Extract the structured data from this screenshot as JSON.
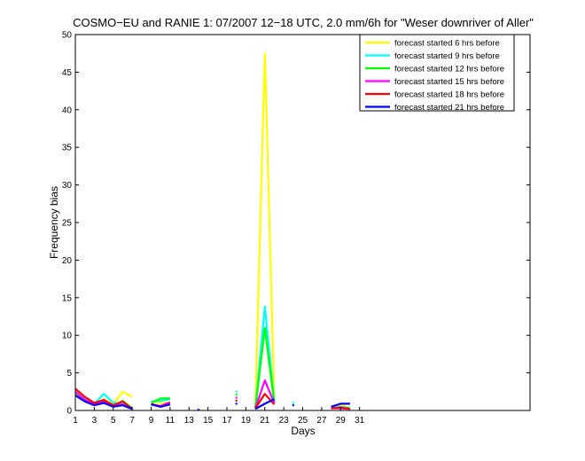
{
  "chart_data": {
    "type": "line",
    "title": "COSMO−EU and RANIE 1: 07/2007 12−18 UTC, 2.0 mm/6h for \"Weser downriver of Aller\"",
    "xlabel": "Days",
    "ylabel": "Frequency bias",
    "xlim": [
      1,
      49
    ],
    "ylim": [
      0,
      50
    ],
    "xticks": [
      1,
      3,
      5,
      7,
      9,
      11,
      13,
      15,
      17,
      19,
      21,
      23,
      25,
      27,
      29,
      31
    ],
    "yticks": [
      0,
      5,
      10,
      15,
      20,
      25,
      30,
      35,
      40,
      45,
      50
    ],
    "legend_position": "top-right",
    "grid": false,
    "series": [
      {
        "name": "forecast started 6 hrs before",
        "color": "#ffff00",
        "points": [
          [
            1,
            2.3
          ],
          [
            2,
            1.5
          ],
          [
            3,
            0.8
          ],
          [
            4,
            1.5
          ],
          [
            5,
            0.8
          ],
          [
            6,
            2.5
          ],
          [
            7,
            1.8
          ],
          [
            9,
            1.2
          ],
          [
            10,
            1.0
          ],
          [
            11,
            1.0
          ],
          [
            20,
            0.5
          ],
          [
            21,
            47.5
          ],
          [
            22,
            1.5
          ],
          [
            28,
            0.3
          ],
          [
            29,
            0.8
          ],
          [
            30,
            0.3
          ]
        ]
      },
      {
        "name": "forecast started 9 hrs before",
        "color": "#00ffff",
        "points": [
          [
            1,
            2.4
          ],
          [
            2,
            1.5
          ],
          [
            3,
            0.9
          ],
          [
            4,
            2.2
          ],
          [
            5,
            1.0
          ],
          [
            6,
            1.0
          ],
          [
            7,
            0.3
          ],
          [
            9,
            1.2
          ],
          [
            10,
            1.3
          ],
          [
            11,
            1.5
          ],
          [
            20,
            0.3
          ],
          [
            21,
            13.8
          ],
          [
            22,
            1.2
          ],
          [
            28,
            0.3
          ],
          [
            29,
            0.5
          ],
          [
            30,
            0.3
          ]
        ]
      },
      {
        "name": "forecast started 12 hrs before",
        "color": "#00ff00",
        "points": [
          [
            1,
            2.2
          ],
          [
            2,
            1.3
          ],
          [
            3,
            0.8
          ],
          [
            4,
            1.2
          ],
          [
            5,
            0.5
          ],
          [
            6,
            1.3
          ],
          [
            7,
            0.3
          ],
          [
            9,
            1.0
          ],
          [
            10,
            1.6
          ],
          [
            11,
            1.6
          ],
          [
            20,
            0.3
          ],
          [
            21,
            11.0
          ],
          [
            22,
            1.0
          ],
          [
            28,
            0.3
          ],
          [
            29,
            0.3
          ],
          [
            30,
            0.3
          ]
        ]
      },
      {
        "name": "forecast started 15 hrs before",
        "color": "#ff00ff",
        "points": [
          [
            1,
            2.5
          ],
          [
            2,
            1.4
          ],
          [
            3,
            0.9
          ],
          [
            4,
            1.3
          ],
          [
            5,
            0.6
          ],
          [
            6,
            0.8
          ],
          [
            7,
            0.3
          ],
          [
            9,
            0.8
          ],
          [
            10,
            0.6
          ],
          [
            11,
            1.1
          ],
          [
            20,
            0.3
          ],
          [
            21,
            4.0
          ],
          [
            22,
            1.0
          ],
          [
            28,
            0.3
          ],
          [
            29,
            0.3
          ],
          [
            30,
            0.2
          ]
        ]
      },
      {
        "name": "forecast started 18 hrs before",
        "color": "#ff0000",
        "points": [
          [
            1,
            2.9
          ],
          [
            2,
            1.8
          ],
          [
            3,
            1.0
          ],
          [
            4,
            1.4
          ],
          [
            5,
            0.7
          ],
          [
            6,
            1.2
          ],
          [
            7,
            0.2
          ],
          [
            9,
            0.9
          ],
          [
            10,
            0.5
          ],
          [
            11,
            0.9
          ],
          [
            20,
            0.3
          ],
          [
            21,
            2.2
          ],
          [
            22,
            0.8
          ],
          [
            28,
            0.3
          ],
          [
            29,
            0.4
          ],
          [
            30,
            0.2
          ]
        ]
      },
      {
        "name": "forecast started 21 hrs before",
        "color": "#0000ff",
        "points": [
          [
            1,
            2.0
          ],
          [
            2,
            1.2
          ],
          [
            3,
            0.7
          ],
          [
            4,
            1.0
          ],
          [
            5,
            0.5
          ],
          [
            6,
            0.7
          ],
          [
            7,
            0.2
          ],
          [
            9,
            0.8
          ],
          [
            10,
            0.5
          ],
          [
            11,
            0.8
          ],
          [
            20,
            0.2
          ],
          [
            21,
            0.9
          ],
          [
            22,
            1.5
          ],
          [
            28,
            0.5
          ],
          [
            29,
            0.9
          ],
          [
            30,
            0.9
          ]
        ]
      }
    ],
    "markers": [
      {
        "x": 18,
        "y": 2.5,
        "color": "#ffff00"
      },
      {
        "x": 18,
        "y": 2.5,
        "color": "#00ffff"
      },
      {
        "x": 18,
        "y": 2.1,
        "color": "#00ff00"
      },
      {
        "x": 18,
        "y": 1.7,
        "color": "#ff00ff"
      },
      {
        "x": 18,
        "y": 1.3,
        "color": "#ff0000"
      },
      {
        "x": 18,
        "y": 0.9,
        "color": "#0000ff"
      },
      {
        "x": 24,
        "y": 1.0,
        "color": "#00ffff"
      },
      {
        "x": 24,
        "y": 0.7,
        "color": "#0000ff"
      },
      {
        "x": 14,
        "y": 0.1,
        "color": "#0000ff"
      }
    ]
  }
}
